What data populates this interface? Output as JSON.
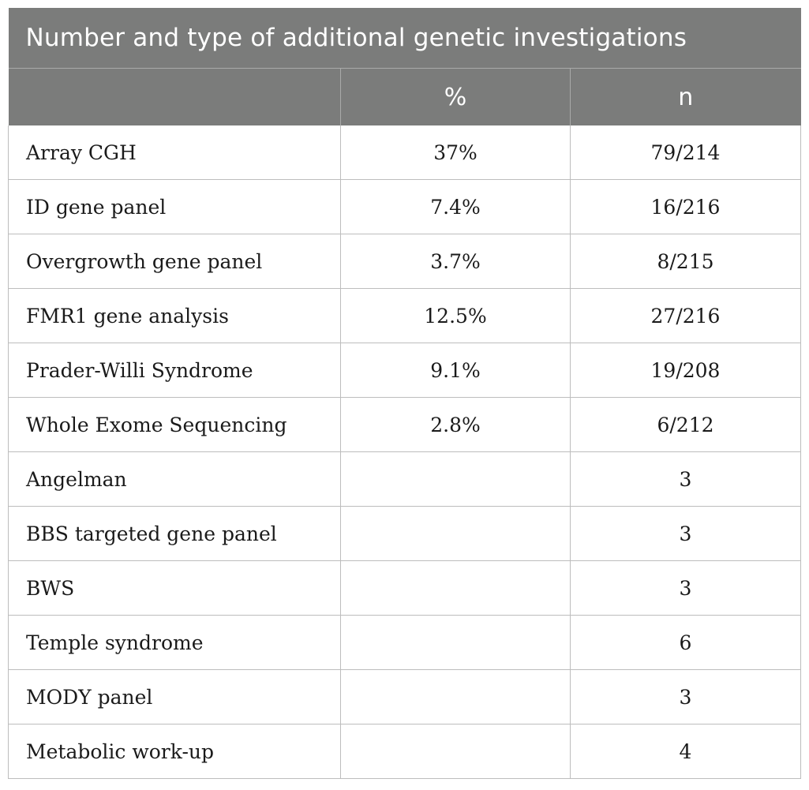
{
  "title": "Number and type of additional genetic investigations",
  "columns": [
    "",
    "%",
    "n"
  ],
  "rows": [
    {
      "label": "Array CGH",
      "percent": "37%",
      "n": "79/214"
    },
    {
      "label": "ID gene panel",
      "percent": "7.4%",
      "n": "16/216"
    },
    {
      "label": "Overgrowth gene panel",
      "percent": "3.7%",
      "n": "8/215"
    },
    {
      "label": "FMR1 gene analysis",
      "percent": "12.5%",
      "n": "27/216"
    },
    {
      "label": "Prader-Willi Syndrome",
      "percent": "9.1%",
      "n": "19/208"
    },
    {
      "label": "Whole Exome Sequencing",
      "percent": "2.8%",
      "n": "6/212"
    },
    {
      "label": "Angelman",
      "percent": "",
      "n": "3"
    },
    {
      "label": "BBS targeted gene panel",
      "percent": "",
      "n": "3"
    },
    {
      "label": "BWS",
      "percent": "",
      "n": "3"
    },
    {
      "label": "Temple syndrome",
      "percent": "",
      "n": "6"
    },
    {
      "label": "MODY panel",
      "percent": "",
      "n": "3"
    },
    {
      "label": "Metabolic work-up",
      "percent": "",
      "n": "4"
    }
  ],
  "colors": {
    "header_bg": "#7b7c7b",
    "header_text": "#ffffff",
    "grid": "#bdbdbd"
  }
}
